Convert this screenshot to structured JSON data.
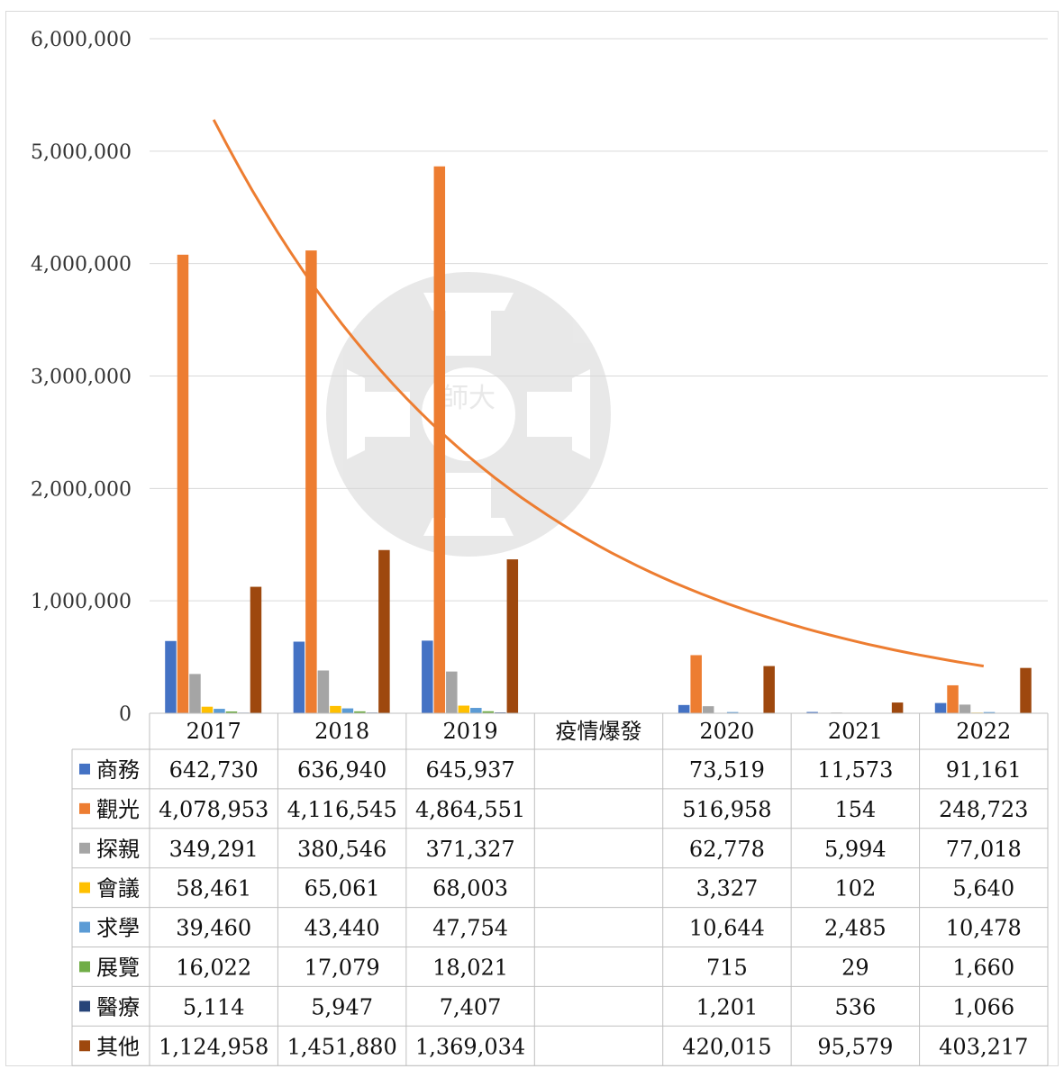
{
  "chart_data": {
    "type": "bar",
    "y_ticks": [
      "6,000,000",
      "5,000,000",
      "4,000,000",
      "3,000,000",
      "2,000,000",
      "1,000,000",
      "0"
    ],
    "ylim": [
      0,
      6000000
    ],
    "grid": true,
    "categories": [
      "2017",
      "2018",
      "2019",
      "疫情爆發",
      "2020",
      "2021",
      "2022"
    ],
    "series": [
      {
        "name": "商務",
        "color": "#4472c4",
        "values": [
          642730,
          636940,
          645937,
          null,
          73519,
          11573,
          91161
        ],
        "labels": [
          "642,730",
          "636,940",
          "645,937",
          "",
          "73,519",
          "11,573",
          "91,161"
        ]
      },
      {
        "name": "觀光",
        "color": "#ed7d31",
        "values": [
          4078953,
          4116545,
          4864551,
          null,
          516958,
          154,
          248723
        ],
        "labels": [
          "4,078,953",
          "4,116,545",
          "4,864,551",
          "",
          "516,958",
          "154",
          "248,723"
        ]
      },
      {
        "name": "探親",
        "color": "#a5a5a5",
        "values": [
          349291,
          380546,
          371327,
          null,
          62778,
          5994,
          77018
        ],
        "labels": [
          "349,291",
          "380,546",
          "371,327",
          "",
          "62,778",
          "5,994",
          "77,018"
        ]
      },
      {
        "name": "會議",
        "color": "#ffc000",
        "values": [
          58461,
          65061,
          68003,
          null,
          3327,
          102,
          5640
        ],
        "labels": [
          "58,461",
          "65,061",
          "68,003",
          "",
          "3,327",
          "102",
          "5,640"
        ]
      },
      {
        "name": "求學",
        "color": "#5b9bd5",
        "values": [
          39460,
          43440,
          47754,
          null,
          10644,
          2485,
          10478
        ],
        "labels": [
          "39,460",
          "43,440",
          "47,754",
          "",
          "10,644",
          "2,485",
          "10,478"
        ]
      },
      {
        "name": "展覽",
        "color": "#70ad47",
        "values": [
          16022,
          17079,
          18021,
          null,
          715,
          29,
          1660
        ],
        "labels": [
          "16,022",
          "17,079",
          "18,021",
          "",
          "715",
          "29",
          "1,660"
        ]
      },
      {
        "name": "醫療",
        "color": "#264478",
        "values": [
          5114,
          5947,
          7407,
          null,
          1201,
          536,
          1066
        ],
        "labels": [
          "5,114",
          "5,947",
          "7,407",
          "",
          "1,201",
          "536",
          "1,066"
        ]
      },
      {
        "name": "其他",
        "color": "#9e480e",
        "values": [
          1124958,
          1451880,
          1369034,
          null,
          420015,
          95579,
          403217
        ],
        "labels": [
          "1,124,958",
          "1,451,880",
          "1,369,034",
          "",
          "420,015",
          "95,579",
          "403,217"
        ]
      }
    ],
    "trendline": {
      "type": "curve",
      "color": "#ed7d31",
      "from_category": "2017",
      "to_category": "2022",
      "start_value": 5280000,
      "end_value": 420000
    },
    "data_table": true,
    "watermark": "師大"
  }
}
